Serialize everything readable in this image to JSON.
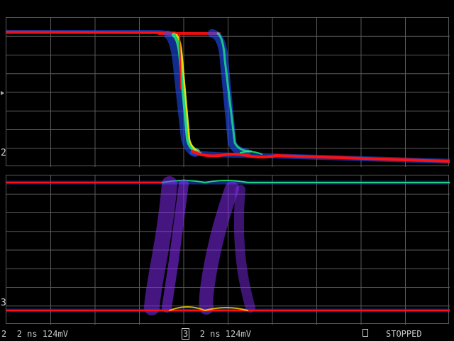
{
  "display": {
    "top_channel": {
      "marker": "2"
    },
    "bottom_channel": {
      "marker": "3"
    }
  },
  "status_bar": {
    "ch2_num": "2",
    "ch2_text": "2 ns  124mV",
    "ch3_num": "3",
    "ch3_text": "2 ns  124mV",
    "state": "STOPPED"
  },
  "colors": {
    "grid": "#5a5a5a",
    "hot": "#ff1010",
    "warm": "#ffe000",
    "mid": "#20ff80",
    "cool": "#2050ff",
    "cold": "#8a2cff"
  }
}
